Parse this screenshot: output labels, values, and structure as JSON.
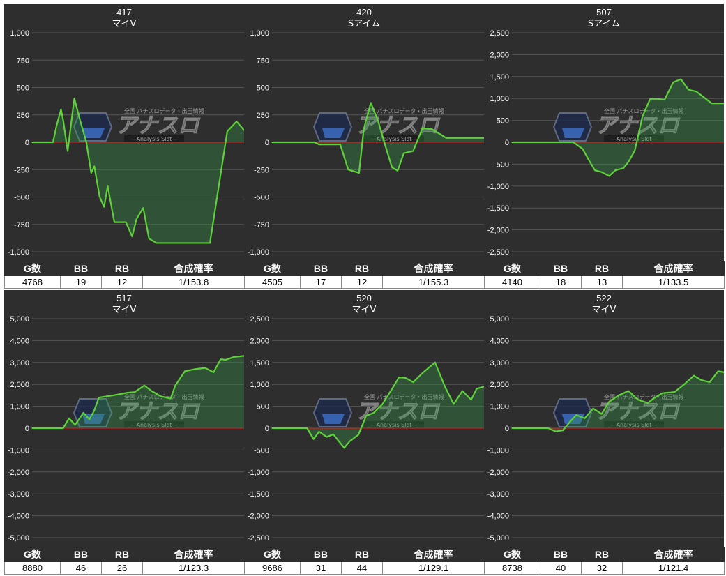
{
  "stats_headers": [
    "G数",
    "BB",
    "RB",
    "合成確率"
  ],
  "watermark": {
    "brand": "アナスロ",
    "tagline": "全国 パチスロデータ・出玉情報",
    "sub": "―Analysis Slot―"
  },
  "colors": {
    "background": "#2e2e2e",
    "line": "#5fd13a",
    "fill": "rgba(52,160,70,0.32)",
    "zero_line": "#e02020",
    "grid": "#555555"
  },
  "panels": [
    {
      "machine_no": "417",
      "machine_name": "マイV",
      "stats": {
        "games": "4768",
        "bb": "19",
        "rb": "12",
        "rate": "1/153.8"
      },
      "chart_data": {
        "type": "area",
        "ylim": [
          -1000,
          1000
        ],
        "yticks": [
          "1,000",
          "750",
          "500",
          "250",
          "0",
          "-250",
          "-500",
          "-750",
          "-1,000"
        ],
        "x": [
          0,
          250,
          470,
          550,
          650,
          700,
          800,
          950,
          1080,
          1150,
          1220,
          1330,
          1400,
          1520,
          1620,
          1700,
          1850,
          1950,
          2110,
          2250,
          2350,
          2500,
          2630,
          2800,
          2950,
          3090,
          3250,
          3450,
          3600,
          3770,
          3860,
          4000,
          4390,
          4600,
          4768
        ],
        "y": [
          0,
          0,
          0,
          150,
          300,
          200,
          -80,
          400,
          200,
          100,
          0,
          -280,
          -220,
          -500,
          -590,
          -400,
          -730,
          -730,
          -730,
          -860,
          -700,
          -600,
          -880,
          -920,
          -920,
          -920,
          -920,
          -920,
          -920,
          -920,
          -920,
          -920,
          100,
          190,
          110
        ]
      }
    },
    {
      "machine_no": "420",
      "machine_name": "Sアイム",
      "stats": {
        "games": "4505",
        "bb": "17",
        "rb": "12",
        "rate": "1/155.3"
      },
      "chart_data": {
        "type": "area",
        "ylim": [
          -1000,
          1000
        ],
        "yticks": [
          "1,000",
          "750",
          "500",
          "250",
          "0",
          "-250",
          "-500",
          "-750",
          "-1,000"
        ],
        "x": [
          0,
          400,
          800,
          900,
          1000,
          1300,
          1450,
          1620,
          1850,
          1950,
          2100,
          2250,
          2400,
          2550,
          2670,
          2800,
          3000,
          3200,
          3400,
          3550,
          3700,
          4000,
          4505
        ],
        "y": [
          0,
          0,
          0,
          0,
          -20,
          -20,
          -20,
          -250,
          -280,
          120,
          360,
          200,
          -20,
          -230,
          -260,
          -100,
          -80,
          130,
          120,
          80,
          40,
          40,
          40
        ]
      }
    },
    {
      "machine_no": "507",
      "machine_name": "Sアイム",
      "stats": {
        "games": "4140",
        "bb": "18",
        "rb": "13",
        "rate": "1/133.5"
      },
      "chart_data": {
        "type": "area",
        "ylim": [
          -2500,
          2500
        ],
        "yticks": [
          "2,500",
          "2,000",
          "1,500",
          "1,000",
          "500",
          "0",
          "-500",
          "-1,000",
          "-1,500",
          "-2,000",
          "-2,500"
        ],
        "x": [
          0,
          300,
          700,
          900,
          1050,
          1200,
          1380,
          1500,
          1620,
          1750,
          1900,
          2020,
          2180,
          2280,
          2400,
          2550,
          2700,
          2850,
          2980,
          3150,
          3300,
          3450,
          3600,
          3900,
          4140
        ],
        "y": [
          0,
          0,
          0,
          0,
          0,
          0,
          -150,
          -400,
          -640,
          -680,
          -770,
          -640,
          -590,
          -440,
          -190,
          590,
          990,
          990,
          970,
          1370,
          1440,
          1200,
          1160,
          890,
          890
        ]
      }
    },
    {
      "machine_no": "517",
      "machine_name": "マイV",
      "stats": {
        "games": "8880",
        "bb": "46",
        "rb": "26",
        "rate": "1/123.3"
      },
      "chart_data": {
        "type": "area",
        "ylim": [
          -5000,
          5000
        ],
        "yticks": [
          "5,000",
          "4,000",
          "3,000",
          "2,000",
          "1,000",
          "0",
          "-1,000",
          "-2,000",
          "-3,000",
          "-4,000",
          "-5,000"
        ],
        "x": [
          0,
          800,
          1300,
          1550,
          1800,
          2150,
          2400,
          2600,
          2800,
          3400,
          4000,
          4300,
          4700,
          5000,
          5400,
          5800,
          6000,
          6400,
          6850,
          7250,
          7600,
          7900,
          8100,
          8450,
          8880
        ],
        "y": [
          0,
          0,
          0,
          450,
          150,
          700,
          400,
          800,
          1400,
          1500,
          1620,
          1650,
          1950,
          1700,
          1450,
          1350,
          1950,
          2600,
          2700,
          2750,
          2550,
          3150,
          3120,
          3250,
          3300
        ]
      }
    },
    {
      "machine_no": "520",
      "machine_name": "マイV",
      "stats": {
        "games": "9686",
        "bb": "31",
        "rb": "44",
        "rate": "1/129.1"
      },
      "chart_data": {
        "type": "area",
        "ylim": [
          -2500,
          2500
        ],
        "yticks": [
          "2,500",
          "2,000",
          "1,500",
          "1,000",
          "500",
          "0",
          "-500",
          "-1,000",
          "-1,500",
          "-2,000",
          "-2,500"
        ],
        "x": [
          0,
          600,
          1250,
          1600,
          1900,
          2150,
          2500,
          2800,
          3300,
          3550,
          3950,
          4300,
          4650,
          5050,
          5450,
          5800,
          6100,
          6450,
          6900,
          7450,
          7900,
          8300,
          8700,
          9100,
          9350,
          9686
        ],
        "y": [
          0,
          0,
          0,
          0,
          -250,
          -80,
          -200,
          -140,
          -450,
          -300,
          -150,
          280,
          350,
          550,
          870,
          1160,
          1150,
          1050,
          1270,
          1500,
          950,
          550,
          850,
          650,
          900,
          950
        ]
      }
    },
    {
      "machine_no": "522",
      "machine_name": "マイV",
      "stats": {
        "games": "8738",
        "bb": "40",
        "rb": "32",
        "rate": "1/121.4"
      },
      "chart_data": {
        "type": "area",
        "ylim": [
          -5000,
          5000
        ],
        "yticks": [
          "5,000",
          "4,000",
          "3,000",
          "2,000",
          "1,000",
          "0",
          "-1,000",
          "-2,000",
          "-3,000",
          "-4,000",
          "-5,000"
        ],
        "x": [
          0,
          800,
          1500,
          1800,
          2100,
          2400,
          2650,
          3000,
          3350,
          3700,
          4000,
          4400,
          4800,
          5200,
          5600,
          5900,
          6200,
          6700,
          7100,
          7500,
          7800,
          8150,
          8500,
          8738
        ],
        "y": [
          0,
          0,
          0,
          -150,
          -100,
          300,
          600,
          450,
          900,
          650,
          1200,
          1500,
          1700,
          1300,
          1150,
          1400,
          1600,
          1650,
          2000,
          2400,
          2200,
          2100,
          2600,
          2550
        ]
      }
    }
  ]
}
